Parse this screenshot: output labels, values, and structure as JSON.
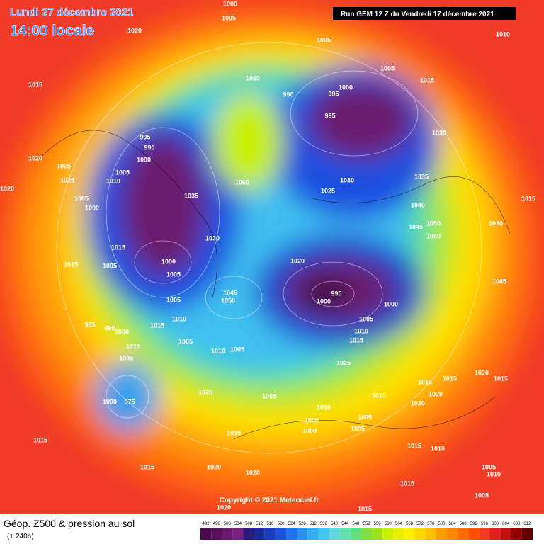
{
  "header": {
    "date": "Lundi 27 décembre 2021",
    "time": "14:00 locale",
    "run": "Run GEM 12 Z du Vendredi 17 décembre 2021"
  },
  "copyright": "Copyright © 2021 Meteociel.fr",
  "footer": {
    "title": "Géop. Z500 & pression au sol",
    "lead": "(+ 240h)"
  },
  "legend": {
    "ticks": [
      "492",
      "496",
      "500",
      "504",
      "508",
      "512",
      "516",
      "520",
      "524",
      "528",
      "532",
      "536",
      "540",
      "544",
      "548",
      "552",
      "556",
      "560",
      "564",
      "568",
      "572",
      "576",
      "580",
      "584",
      "588",
      "592",
      "596",
      "600",
      "604",
      "608",
      "612"
    ],
    "colors": [
      "#4b0a4b",
      "#5a0f5a",
      "#6a1a6e",
      "#7a2080",
      "#2a1a7a",
      "#1a2a9a",
      "#1a3cc0",
      "#1e50e0",
      "#2070f0",
      "#2890f0",
      "#30b0f0",
      "#40c8f0",
      "#60d8e0",
      "#60e0b0",
      "#60e080",
      "#80e040",
      "#a0e020",
      "#c8f000",
      "#e8f000",
      "#fff000",
      "#ffd800",
      "#ffc000",
      "#ffa000",
      "#ff8800",
      "#ff6c00",
      "#ff5000",
      "#f03c20",
      "#e02020",
      "#c01010",
      "#900000",
      "#600000"
    ]
  },
  "map": {
    "pressure_labels": [
      "1000",
      "1005",
      "1020",
      "1010",
      "1005",
      "1005",
      "1015",
      "1010",
      "1000",
      "995",
      "1015",
      "990",
      "995",
      "1030",
      "995",
      "990",
      "1000",
      "1020",
      "1025",
      "1005",
      "1060",
      "1025",
      "1030",
      "1035",
      "1020",
      "1025",
      "1010",
      "1035",
      "1015",
      "1040",
      "1005",
      "1000",
      "1050",
      "1045",
      "1030",
      "1050",
      "1030",
      "1015",
      "1020",
      "1015",
      "1005",
      "1000",
      "1005",
      "1045",
      "1045",
      "1050",
      "995",
      "1000",
      "1005",
      "1000",
      "1010",
      "1005",
      "1015",
      "985",
      "990",
      "1000",
      "1010",
      "1005",
      "1015",
      "1010",
      "1010",
      "1005",
      "1005",
      "1025",
      "1020",
      "1015",
      "1015",
      "1015",
      "1020",
      "1015",
      "1005",
      "1020",
      "1000",
      "975",
      "1010",
      "1020",
      "1005",
      "1000",
      "1005",
      "1010",
      "1000",
      "1015",
      "1015",
      "1010",
      "1005",
      "1010",
      "1015",
      "1020",
      "1020",
      "1015",
      "1005",
      "1020",
      "1015"
    ]
  }
}
